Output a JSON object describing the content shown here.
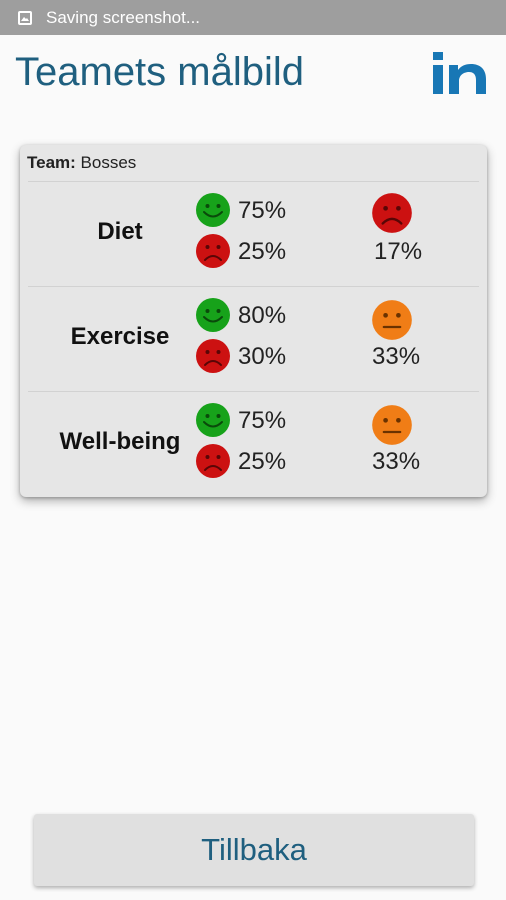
{
  "status_bar": {
    "icon": "screenshot-icon",
    "text": "Saving screenshot..."
  },
  "header": {
    "title": "Teamets målbild",
    "logo_text": "in"
  },
  "card": {
    "team_label": "Team:",
    "team_name": "Bosses",
    "rows": [
      {
        "category": "Diet",
        "happy_pct": "75%",
        "sad_pct": "25%",
        "overall_mood": "sad",
        "overall_pct": "17%"
      },
      {
        "category": "Exercise",
        "happy_pct": "80%",
        "sad_pct": "30%",
        "overall_mood": "neutral",
        "overall_pct": "33%"
      },
      {
        "category": "Well-being",
        "happy_pct": "75%",
        "sad_pct": "25%",
        "overall_mood": "neutral",
        "overall_pct": "33%"
      }
    ]
  },
  "footer": {
    "back_label": "Tillbaka"
  },
  "colors": {
    "accent": "#1f5f7f",
    "happy": "#17a21a",
    "sad": "#cc1111",
    "neutral": "#f07d16",
    "logo": "#1877b5"
  }
}
